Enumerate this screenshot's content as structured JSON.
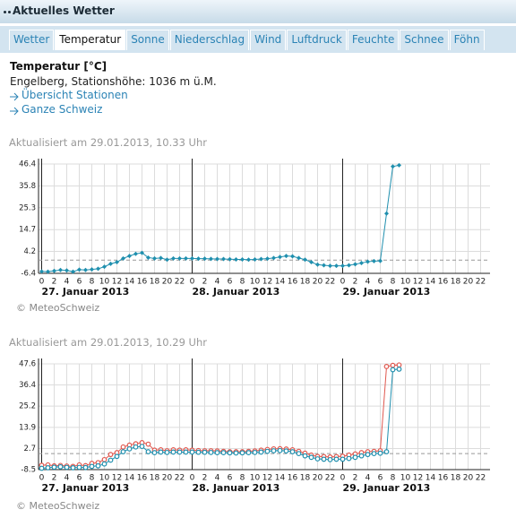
{
  "header": {
    "title": "Aktuelles Wetter"
  },
  "tabs": [
    "Wetter",
    "Temperatur",
    "Sonne",
    "Niederschlag",
    "Wind",
    "Luftdruck",
    "Feuchte",
    "Schnee",
    "Föhn"
  ],
  "active_tab": 1,
  "heading": "Temperatur [°C]",
  "station": "Engelberg, Stationshöhe: 1036 m ü.M.",
  "links": [
    "Übersicht Stationen",
    "Ganze Schweiz"
  ],
  "chart_data": [
    {
      "type": "line",
      "updated": "Aktualisiert am 29.01.2013, 10.33 Uhr",
      "source": "© MeteoSchweiz",
      "xlim": [
        -0.5,
        71.5
      ],
      "xticks": [
        0,
        2,
        4,
        6,
        8,
        10,
        12,
        14,
        16,
        18,
        20,
        22,
        {
          "value": 24,
          "label": "0"
        },
        {
          "value": 26,
          "label": "2"
        },
        {
          "value": 28,
          "label": "4"
        },
        {
          "value": 30,
          "label": "6"
        },
        {
          "value": 32,
          "label": "8"
        },
        {
          "value": 34,
          "label": "10"
        },
        {
          "value": 36,
          "label": "12"
        },
        {
          "value": 38,
          "label": "14"
        },
        {
          "value": 40,
          "label": "16"
        },
        {
          "value": 42,
          "label": "18"
        },
        {
          "value": 44,
          "label": "20"
        },
        {
          "value": 46,
          "label": "22"
        },
        {
          "value": 48,
          "label": "0"
        },
        {
          "value": 50,
          "label": "2"
        },
        {
          "value": 52,
          "label": "4"
        },
        {
          "value": 54,
          "label": "6"
        },
        {
          "value": 56,
          "label": "8"
        },
        {
          "value": 58,
          "label": "10"
        },
        {
          "value": 60,
          "label": "12"
        },
        {
          "value": 62,
          "label": "14"
        },
        {
          "value": 64,
          "label": "16"
        },
        {
          "value": 66,
          "label": "18"
        },
        {
          "value": 68,
          "label": "20"
        },
        {
          "value": 70,
          "label": "22"
        }
      ],
      "day_labels": [
        {
          "value": 0,
          "label": "27. Januar 2013"
        },
        {
          "value": 24,
          "label": "28. Januar 2013"
        },
        {
          "value": 48,
          "label": "29. Januar 2013"
        }
      ],
      "ylim": [
        -6.4,
        46.4
      ],
      "yticks": [
        -6.4,
        4.2,
        14.7,
        25.3,
        35.8,
        46.4
      ],
      "reference_line": 0,
      "x": [
        0,
        1,
        2,
        3,
        4,
        5,
        6,
        7,
        8,
        9,
        10,
        11,
        12,
        13,
        14,
        15,
        16,
        17,
        18,
        19,
        20,
        21,
        22,
        23,
        24,
        25,
        26,
        27,
        28,
        29,
        30,
        31,
        32,
        33,
        34,
        35,
        36,
        37,
        38,
        39,
        40,
        41,
        42,
        43,
        44,
        45,
        46,
        47,
        48,
        49,
        50,
        51,
        52,
        53,
        54,
        55,
        56,
        57
      ],
      "series": [
        {
          "color": "#1f8fae",
          "marker": "diamond",
          "values": [
            -5.5,
            -5.6,
            -5.2,
            -4.8,
            -5.0,
            -5.6,
            -4.6,
            -4.8,
            -4.5,
            -4.2,
            -3.2,
            -1.8,
            -1.0,
            0.8,
            2.0,
            3.0,
            3.5,
            1.2,
            0.8,
            1.0,
            0.2,
            0.8,
            0.8,
            0.8,
            0.8,
            0.7,
            0.7,
            0.6,
            0.5,
            0.5,
            0.4,
            0.3,
            0.3,
            0.2,
            0.3,
            0.5,
            0.7,
            1.0,
            1.5,
            2.0,
            1.8,
            1.0,
            0.2,
            -1.0,
            -2.2,
            -2.5,
            -2.8,
            -2.8,
            -2.8,
            -2.5,
            -2.0,
            -1.4,
            -0.8,
            -0.5,
            -0.4,
            22.5,
            45.2,
            45.8
          ]
        }
      ]
    },
    {
      "type": "line",
      "updated": "Aktualisiert am 29.01.2013, 10.29 Uhr",
      "source": "© MeteoSchweiz",
      "xlim": [
        -0.5,
        71.5
      ],
      "xticks": [
        0,
        2,
        4,
        6,
        8,
        10,
        12,
        14,
        16,
        18,
        20,
        22,
        {
          "value": 24,
          "label": "0"
        },
        {
          "value": 26,
          "label": "2"
        },
        {
          "value": 28,
          "label": "4"
        },
        {
          "value": 30,
          "label": "6"
        },
        {
          "value": 32,
          "label": "8"
        },
        {
          "value": 34,
          "label": "10"
        },
        {
          "value": 36,
          "label": "12"
        },
        {
          "value": 38,
          "label": "14"
        },
        {
          "value": 40,
          "label": "16"
        },
        {
          "value": 42,
          "label": "18"
        },
        {
          "value": 44,
          "label": "20"
        },
        {
          "value": 46,
          "label": "22"
        },
        {
          "value": 48,
          "label": "0"
        },
        {
          "value": 50,
          "label": "2"
        },
        {
          "value": 52,
          "label": "4"
        },
        {
          "value": 54,
          "label": "6"
        },
        {
          "value": 56,
          "label": "8"
        },
        {
          "value": 58,
          "label": "10"
        },
        {
          "value": 60,
          "label": "12"
        },
        {
          "value": 62,
          "label": "14"
        },
        {
          "value": 64,
          "label": "16"
        },
        {
          "value": 66,
          "label": "18"
        },
        {
          "value": 68,
          "label": "20"
        },
        {
          "value": 70,
          "label": "22"
        }
      ],
      "day_labels": [
        {
          "value": 0,
          "label": "27. Januar 2013"
        },
        {
          "value": 24,
          "label": "28. Januar 2013"
        },
        {
          "value": 48,
          "label": "29. Januar 2013"
        }
      ],
      "ylim": [
        -8.5,
        47.6
      ],
      "yticks": [
        -8.5,
        2.7,
        13.9,
        25.2,
        36.4,
        47.6
      ],
      "reference_line": 0,
      "x": [
        0,
        1,
        2,
        3,
        4,
        5,
        6,
        7,
        8,
        9,
        10,
        11,
        12,
        13,
        14,
        15,
        16,
        17,
        18,
        19,
        20,
        21,
        22,
        23,
        24,
        25,
        26,
        27,
        28,
        29,
        30,
        31,
        32,
        33,
        34,
        35,
        36,
        37,
        38,
        39,
        40,
        41,
        42,
        43,
        44,
        45,
        46,
        47,
        48,
        49,
        50,
        51,
        52,
        53,
        54,
        55,
        56,
        57
      ],
      "series": [
        {
          "color": "#e0584f",
          "marker": "circle",
          "values": [
            -6.2,
            -6.0,
            -6.5,
            -6.3,
            -6.6,
            -6.8,
            -6.0,
            -6.4,
            -5.2,
            -4.8,
            -3.2,
            -0.5,
            0.5,
            3.5,
            4.5,
            5.2,
            5.8,
            5.0,
            1.8,
            2.0,
            1.5,
            2.0,
            1.8,
            2.0,
            1.8,
            1.6,
            1.5,
            1.5,
            1.4,
            1.2,
            1.0,
            1.0,
            1.0,
            1.2,
            1.4,
            1.8,
            2.2,
            2.5,
            2.6,
            2.4,
            2.0,
            1.2,
            0.2,
            -0.8,
            -1.5,
            -1.6,
            -1.8,
            -1.6,
            -1.4,
            -0.8,
            -0.2,
            0.5,
            1.0,
            1.2,
            1.5,
            46.2,
            46.8,
            47.0
          ]
        },
        {
          "color": "#1f8fae",
          "marker": "circle",
          "values": [
            -7.8,
            -7.5,
            -7.2,
            -7.0,
            -7.3,
            -7.5,
            -7.3,
            -7.4,
            -6.8,
            -6.5,
            -5.5,
            -3.5,
            -1.5,
            1.0,
            2.5,
            3.5,
            3.8,
            1.0,
            0.5,
            0.8,
            0.6,
            0.8,
            0.8,
            0.8,
            0.8,
            0.7,
            0.7,
            0.6,
            0.5,
            0.5,
            0.4,
            0.3,
            0.4,
            0.5,
            0.6,
            0.8,
            1.2,
            1.5,
            1.6,
            1.4,
            1.0,
            0.0,
            -1.2,
            -2.0,
            -2.8,
            -3.0,
            -3.2,
            -3.0,
            -3.0,
            -2.6,
            -2.0,
            -1.2,
            -0.5,
            0.0,
            0.2,
            1.0,
            44.5,
            44.8
          ]
        }
      ]
    }
  ]
}
